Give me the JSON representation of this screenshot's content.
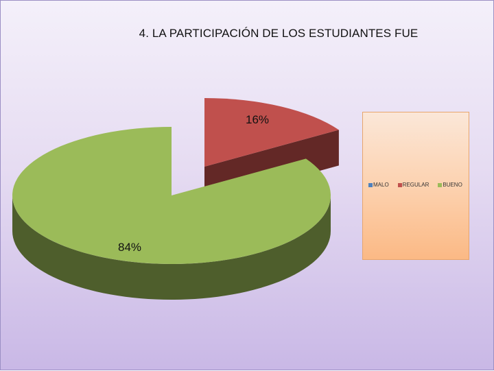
{
  "chart_data": {
    "type": "pie",
    "title": "4. LA PARTICIPACIÓN DE LOS ESTUDIANTES FUE",
    "categories": [
      "MALO",
      "REGULAR",
      "BUENO"
    ],
    "values": [
      0,
      16,
      84
    ],
    "value_labels": [
      "",
      "16%",
      "84%"
    ],
    "colors": [
      "#4f81bd",
      "#c0504d",
      "#9bbb59"
    ],
    "side_colors": [
      "#2c4a70",
      "#632826",
      "#4e5e2c"
    ],
    "legend_position": "right",
    "style": "3d-exploded"
  }
}
